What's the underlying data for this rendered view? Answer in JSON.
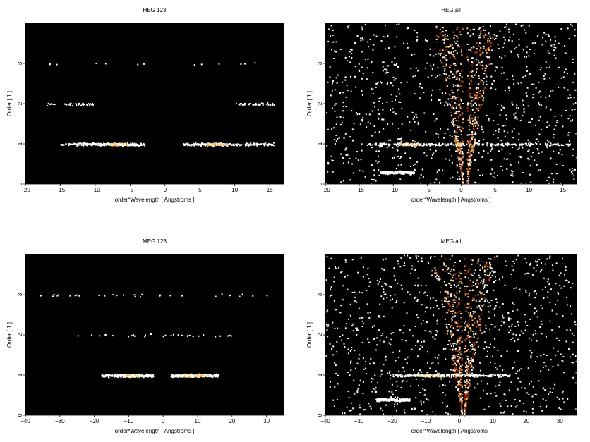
{
  "chart_data": [
    {
      "type": "heatmap",
      "title": "HEG 123",
      "xlabel": "order*Wavelength [ Angstroms ]",
      "ylabel": "Order [ 1 ]",
      "xlim": [
        -20,
        17
      ],
      "ylim": [
        0,
        4
      ],
      "xticks": [
        -20,
        -15,
        -10,
        -5,
        0,
        5,
        10,
        15
      ],
      "yticks": [
        0,
        1,
        2,
        3
      ],
      "background": "#000000",
      "features": [
        {
          "order": 1,
          "x_range": [
            -15,
            -3
          ],
          "peak": [
            -8,
            -5
          ],
          "strength": 0.9
        },
        {
          "order": 1,
          "x_range": [
            2.5,
            15.5
          ],
          "peak": [
            6,
            9
          ],
          "strength": 0.8
        },
        {
          "order": 2,
          "x_range": [
            -17,
            -10
          ],
          "strength": 0.15
        },
        {
          "order": 2,
          "x_range": [
            10,
            16
          ],
          "strength": 0.15
        },
        {
          "order": 3,
          "x_range": [
            -18,
            14
          ],
          "strength": 0.05
        }
      ]
    },
    {
      "type": "heatmap",
      "title": "HEG all",
      "xlabel": "order*Wavelength [ Angstroms ]",
      "ylabel": "Order [ 1 ]",
      "xlim": [
        -20,
        17
      ],
      "ylim": [
        0,
        4
      ],
      "xticks": [
        -20,
        -15,
        -10,
        -5,
        0,
        5,
        10,
        15
      ],
      "yticks": [
        0,
        1,
        2,
        3
      ],
      "background": "#000000",
      "features": [
        {
          "order": 1,
          "x_range": [
            -14,
            16
          ],
          "peak": [
            -9,
            -6
          ],
          "strength": 0.9
        },
        {
          "order": 0.3,
          "x_range": [
            -12,
            -7
          ],
          "strength": 0.85
        },
        {
          "kind": "zero-order-wedge",
          "x_center": 0.5,
          "strength": 0.9
        }
      ]
    },
    {
      "type": "heatmap",
      "title": "MEG 123",
      "xlabel": "order*Wavelength [ Angstroms ]",
      "ylabel": "Order [ 1 ]",
      "xlim": [
        -40,
        35
      ],
      "ylim": [
        0,
        4
      ],
      "xticks": [
        -40,
        -30,
        -20,
        -10,
        0,
        10,
        20,
        30
      ],
      "yticks": [
        0,
        1,
        2,
        3
      ],
      "background": "#000000",
      "features": [
        {
          "order": 1,
          "x_range": [
            -18,
            -3
          ],
          "peak": [
            -11,
            -7
          ],
          "strength": 1.0
        },
        {
          "order": 1,
          "x_range": [
            2,
            16
          ],
          "peak": [
            6,
            13
          ],
          "strength": 0.95
        },
        {
          "order": 2,
          "x_range": [
            -26,
            22
          ],
          "strength": 0.12
        },
        {
          "order": 3,
          "x_range": [
            -36,
            30
          ],
          "strength": 0.12
        }
      ]
    },
    {
      "type": "heatmap",
      "title": "MEG all",
      "xlabel": "order*Wavelength [ Angstroms ]",
      "ylabel": "Order [ 1 ]",
      "xlim": [
        -40,
        35
      ],
      "ylim": [
        0,
        4
      ],
      "xticks": [
        -40,
        -30,
        -20,
        -10,
        0,
        10,
        20,
        30
      ],
      "yticks": [
        0,
        1,
        2,
        3
      ],
      "background": "#000000",
      "features": [
        {
          "order": 1,
          "x_range": [
            -20,
            15
          ],
          "peak": [
            -12,
            -5
          ],
          "strength": 1.0
        },
        {
          "order": 0.4,
          "x_range": [
            -25,
            -15
          ],
          "strength": 0.85
        },
        {
          "kind": "zero-order-wedge",
          "x_center": 1,
          "strength": 0.9
        }
      ]
    }
  ]
}
